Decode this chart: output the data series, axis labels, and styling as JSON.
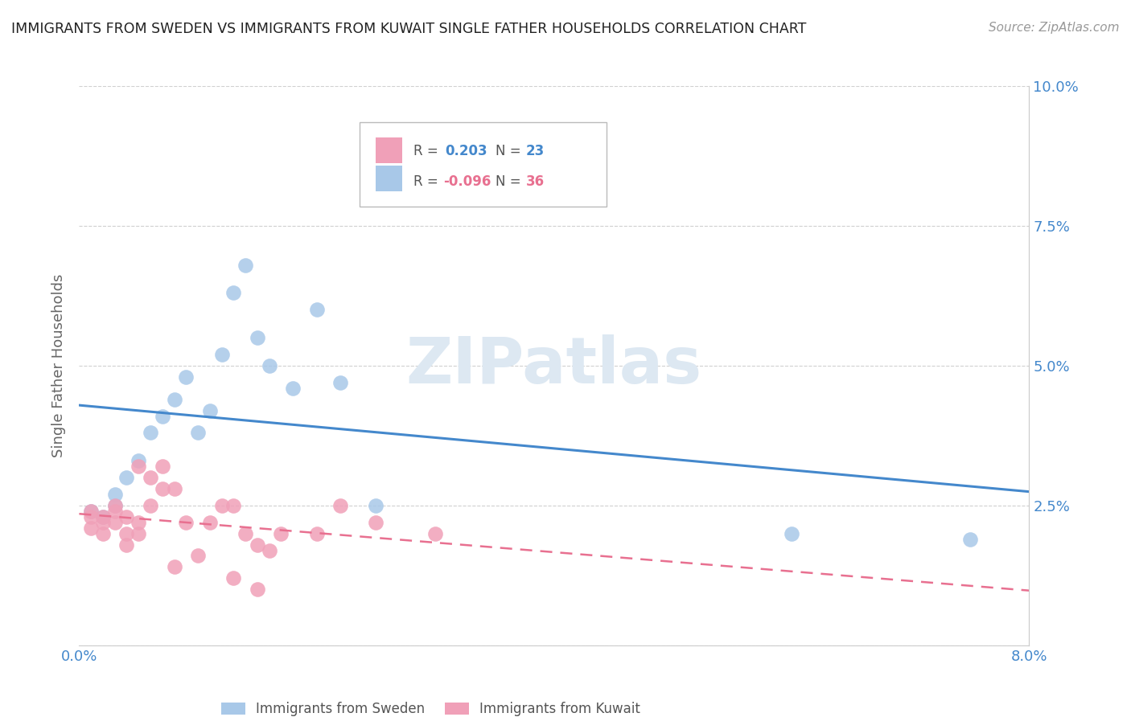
{
  "title": "IMMIGRANTS FROM SWEDEN VS IMMIGRANTS FROM KUWAIT SINGLE FATHER HOUSEHOLDS CORRELATION CHART",
  "source": "Source: ZipAtlas.com",
  "ylabel": "Single Father Households",
  "xlim": [
    0.0,
    0.08
  ],
  "ylim": [
    0.0,
    0.1
  ],
  "watermark": "ZIPatlas",
  "sweden_color": "#a8c8e8",
  "kuwait_color": "#f0a0b8",
  "sweden_line_color": "#4488cc",
  "kuwait_line_color": "#e87090",
  "r_sweden": 0.203,
  "n_sweden": 23,
  "r_kuwait": -0.096,
  "n_kuwait": 36,
  "sweden_x": [
    0.001,
    0.002,
    0.003,
    0.003,
    0.004,
    0.005,
    0.006,
    0.007,
    0.008,
    0.009,
    0.01,
    0.011,
    0.012,
    0.013,
    0.014,
    0.015,
    0.016,
    0.018,
    0.02,
    0.022,
    0.025,
    0.06,
    0.075
  ],
  "sweden_y": [
    0.024,
    0.023,
    0.025,
    0.027,
    0.03,
    0.033,
    0.038,
    0.041,
    0.044,
    0.048,
    0.038,
    0.042,
    0.052,
    0.063,
    0.068,
    0.055,
    0.05,
    0.046,
    0.06,
    0.047,
    0.025,
    0.02,
    0.019
  ],
  "kuwait_x": [
    0.001,
    0.001,
    0.001,
    0.002,
    0.002,
    0.002,
    0.003,
    0.003,
    0.003,
    0.004,
    0.004,
    0.004,
    0.005,
    0.005,
    0.005,
    0.006,
    0.006,
    0.007,
    0.007,
    0.008,
    0.008,
    0.009,
    0.01,
    0.011,
    0.012,
    0.013,
    0.013,
    0.014,
    0.015,
    0.015,
    0.016,
    0.017,
    0.02,
    0.022,
    0.025,
    0.03
  ],
  "kuwait_y": [
    0.023,
    0.021,
    0.024,
    0.022,
    0.02,
    0.023,
    0.022,
    0.024,
    0.025,
    0.02,
    0.018,
    0.023,
    0.022,
    0.02,
    0.032,
    0.025,
    0.03,
    0.028,
    0.032,
    0.028,
    0.014,
    0.022,
    0.016,
    0.022,
    0.025,
    0.025,
    0.012,
    0.02,
    0.018,
    0.01,
    0.017,
    0.02,
    0.02,
    0.025,
    0.022,
    0.02
  ],
  "background_color": "#ffffff",
  "grid_color": "#d0d0d0",
  "title_color": "#222222",
  "tick_label_color": "#4488cc"
}
